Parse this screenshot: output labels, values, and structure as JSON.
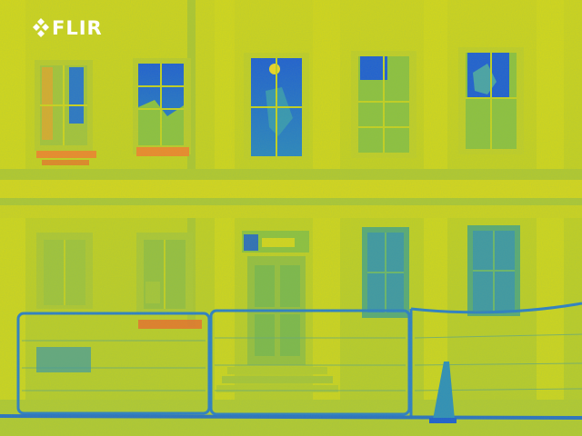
{
  "brand": {
    "name": "FLIR",
    "icon": "flir-diamond-logo-icon"
  },
  "palette": {
    "base": "#c9d21a",
    "warm": "#e9a42a",
    "hot": "#ef6a2a",
    "cool": "#2f8fb9",
    "cold": "#1e5fd1",
    "mid": "#8fc23e"
  },
  "scene": {
    "upper_windows": 5,
    "lower_windows": 4
  }
}
